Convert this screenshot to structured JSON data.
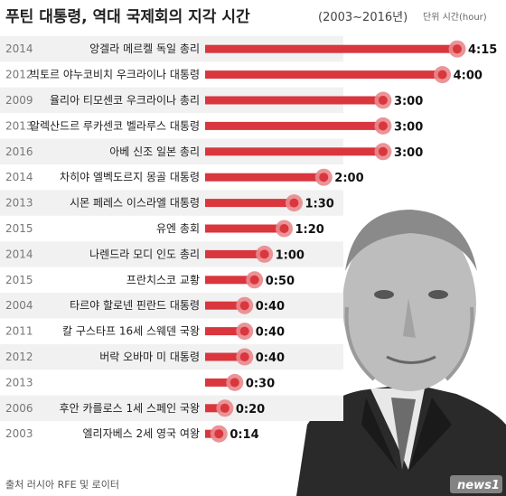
{
  "chart_data": {
    "type": "bar",
    "orientation": "horizontal",
    "title": "푸틴 대통령, 역대 국제회의 지각 시간",
    "title_range": "(2003~2016년)",
    "unit_label": "단위 시간(hour)",
    "source": "출처 러시아 RFE 및 로이터",
    "logo": "news1",
    "bar_color": "#d9363e",
    "marker_color": "#e8888c",
    "xlim": [
      0,
      4.25
    ],
    "rows": [
      {
        "year": "2014",
        "label": "앙겔라 메르켈 독일 총리",
        "display": "4:15",
        "value": 4.25
      },
      {
        "year": "2012",
        "label": "빅토르 야누코비치 우크라이나 대통령",
        "display": "4:00",
        "value": 4.0
      },
      {
        "year": "2009",
        "label": "율리아 티모센코 우크라이나 총리",
        "display": "3:00",
        "value": 3.0
      },
      {
        "year": "2013",
        "label": "알렉산드르 루카센코 벨라루스 대통령",
        "display": "3:00",
        "value": 3.0
      },
      {
        "year": "2016",
        "label": "아베 신조 일본 총리",
        "display": "3:00",
        "value": 3.0
      },
      {
        "year": "2014",
        "label": "차히야 엘벡도르지 몽골 대통령",
        "display": "2:00",
        "value": 2.0
      },
      {
        "year": "2013",
        "label": "시몬 페레스 이스라엘 대통령",
        "display": "1:30",
        "value": 1.5
      },
      {
        "year": "2015",
        "label": "유엔 총회",
        "display": "1:20",
        "value": 1.3333
      },
      {
        "year": "2014",
        "label": "나렌드라 모디 인도 총리",
        "display": "1:00",
        "value": 1.0
      },
      {
        "year": "2015",
        "label": "프란치스코 교황",
        "display": "0:50",
        "value": 0.8333
      },
      {
        "year": "2004",
        "label": "타르야 할로넨 핀란드 대통령",
        "display": "0:40",
        "value": 0.6667
      },
      {
        "year": "2011",
        "label": "칼 구스타프 16세 스웨덴 국왕",
        "display": "0:40",
        "value": 0.6667
      },
      {
        "year": "2012",
        "label": "버락 오바마 미 대통령",
        "display": "0:40",
        "value": 0.6667
      },
      {
        "year": "2013",
        "label": "",
        "display": "0:30",
        "value": 0.5
      },
      {
        "year": "2006",
        "label": "후안 카를로스 1세 스페인 국왕",
        "display": "0:20",
        "value": 0.3333
      },
      {
        "year": "2003",
        "label": "엘리자베스 2세 영국 여왕",
        "display": "0:14",
        "value": 0.2333
      }
    ]
  }
}
